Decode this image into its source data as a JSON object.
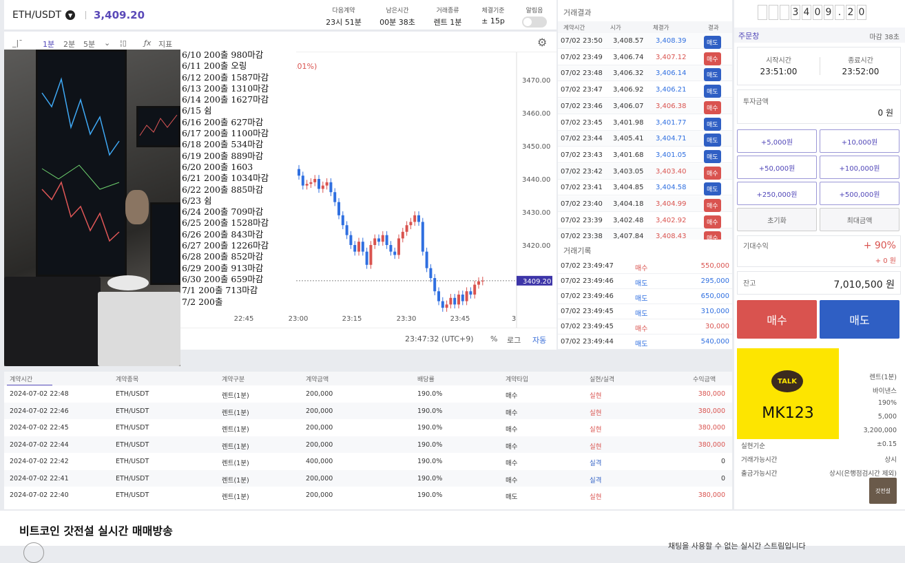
{
  "topbar": {
    "pair": "ETH/USDT",
    "price": "3,409.20",
    "items": [
      {
        "label": "다음계약",
        "value": "23시 51분"
      },
      {
        "label": "남은시간",
        "value": "00분 38초"
      },
      {
        "label": "거래종류",
        "value": "렌트 1분"
      },
      {
        "label": "체결기준",
        "value": "± 15p"
      },
      {
        "label": "알림음",
        "value": ""
      }
    ]
  },
  "toolbar": {
    "intervals": [
      "1분",
      "2분",
      "5분"
    ],
    "indicator": "지표"
  },
  "chart": {
    "partial_label": ".01%)",
    "price_label": "3409.20",
    "time_label": "23:47:32 (UTC+9)",
    "pct": "%",
    "log": "로그",
    "auto": "자동",
    "yticks": [
      "3470.00",
      "3460.00",
      "3450.00",
      "3440.00",
      "3430.00",
      "3420.00"
    ],
    "xticks": [
      "22:30",
      "22:45",
      "23:00",
      "23:15",
      "23:30",
      "23:45",
      "3"
    ]
  },
  "notes": [
    "6/10 200출  980마감",
    "6/11 200출 오링",
    "6/12 200출 1587마감",
    "6/13 200출 1310마감",
    "6/14 200출 1627마감",
    "6/15 쉼",
    "6/16 200출 627마감",
    "6/17 200출 1100마감",
    "6/18 200출 534마감",
    "6/19 200출 889마감",
    "6/20 200출 1603",
    "6/21 200출 1034마감",
    "6/22 200출 885마감",
    "6/23 쉼",
    "6/24 200출 709마감",
    "6/25 200출 1528마감",
    "6/26 200출 843마감",
    "6/27 200출 1226마감",
    "6/28 200출 852마감",
    "6/29 200출 913마감",
    "6/30 200출 659마감",
    "7/1  200출 713마감",
    "7/2  200출"
  ],
  "results": {
    "title": "거래결과",
    "headers": [
      "계약시간",
      "시가",
      "체결가",
      "결과"
    ],
    "rows": [
      [
        "07/02 23:50",
        "3,408.57",
        "3,408.39",
        "매도"
      ],
      [
        "07/02 23:49",
        "3,406.74",
        "3,407.12",
        "매수"
      ],
      [
        "07/02 23:48",
        "3,406.32",
        "3,406.14",
        "매도"
      ],
      [
        "07/02 23:47",
        "3,406.92",
        "3,406.21",
        "매도"
      ],
      [
        "07/02 23:46",
        "3,406.07",
        "3,406.38",
        "매수"
      ],
      [
        "07/02 23:45",
        "3,401.98",
        "3,401.77",
        "매도"
      ],
      [
        "07/02 23:44",
        "3,405.41",
        "3,404.71",
        "매도"
      ],
      [
        "07/02 23:43",
        "3,401.68",
        "3,401.05",
        "매도"
      ],
      [
        "07/02 23:42",
        "3,403.05",
        "3,403.40",
        "매수"
      ],
      [
        "07/02 23:41",
        "3,404.85",
        "3,404.58",
        "매도"
      ],
      [
        "07/02 23:40",
        "3,404.18",
        "3,404.99",
        "매수"
      ],
      [
        "07/02 23:39",
        "3,402.48",
        "3,402.92",
        "매수"
      ],
      [
        "07/02 23:38",
        "3,407.84",
        "3,408.43",
        "매수"
      ]
    ]
  },
  "history": {
    "title": "거래기록",
    "rows": [
      [
        "07/02 23:49:47",
        "매수",
        "550,000"
      ],
      [
        "07/02 23:49:46",
        "매도",
        "295,000"
      ],
      [
        "07/02 23:49:46",
        "매도",
        "650,000"
      ],
      [
        "07/02 23:49:45",
        "매도",
        "310,000"
      ],
      [
        "07/02 23:49:45",
        "매수",
        "30,000"
      ],
      [
        "07/02 23:49:44",
        "매도",
        "540,000"
      ]
    ]
  },
  "order": {
    "digits": [
      "",
      "",
      "",
      "3",
      "4",
      "0",
      "9",
      ".",
      "2",
      "0"
    ],
    "title": "주문창",
    "deadline": "마감 38초",
    "start_label": "시작시간",
    "start": "23:51:00",
    "end_label": "종료시간",
    "end": "23:52:00",
    "invest_label": "투자금액",
    "invest": "0 원",
    "buttons": [
      "+5,000원",
      "+10,000원",
      "+50,000원",
      "+100,000원",
      "+250,000원",
      "+500,000원",
      "초기화",
      "최대금액"
    ],
    "expect_label": "기대수익",
    "expect_pct": "+ 90%",
    "expect_amt": "+ 0 원",
    "balance_label": "잔고",
    "balance": "7,010,500 원",
    "buy": "매수",
    "sell": "매도",
    "talk": "TALK",
    "talk_id": "MK123",
    "info": [
      [
        "",
        "렌트(1분)"
      ],
      [
        "",
        "바이낸스"
      ],
      [
        "",
        "190%"
      ],
      [
        "",
        "5,000"
      ],
      [
        "",
        "3,200,000"
      ],
      [
        "실현기순",
        "±0.15"
      ],
      [
        "거래가능시간",
        "상시"
      ],
      [
        "출금가능시간",
        "상시(은행점검시간 제외)"
      ]
    ],
    "corner": "갓전설"
  },
  "contracts": {
    "headers": [
      "계약시간",
      "계약종목",
      "계약구분",
      "계약금액",
      "배당률",
      "계약타입",
      "실현/실격",
      "수익금액"
    ],
    "rows": [
      [
        "2024-07-02 22:48",
        "ETH/USDT",
        "렌트(1분)",
        "200,000",
        "190.0%",
        "매수",
        "실현",
        "380,000"
      ],
      [
        "2024-07-02 22:46",
        "ETH/USDT",
        "렌트(1분)",
        "200,000",
        "190.0%",
        "매수",
        "실현",
        "380,000"
      ],
      [
        "2024-07-02 22:45",
        "ETH/USDT",
        "렌트(1분)",
        "200,000",
        "190.0%",
        "매수",
        "실현",
        "380,000"
      ],
      [
        "2024-07-02 22:44",
        "ETH/USDT",
        "렌트(1분)",
        "200,000",
        "190.0%",
        "매수",
        "실현",
        "380,000"
      ],
      [
        "2024-07-02 22:42",
        "ETH/USDT",
        "렌트(1분)",
        "400,000",
        "190.0%",
        "매수",
        "실격",
        "0"
      ],
      [
        "2024-07-02 22:41",
        "ETH/USDT",
        "렌트(1분)",
        "200,000",
        "190.0%",
        "매수",
        "실격",
        "0"
      ],
      [
        "2024-07-02 22:40",
        "ETH/USDT",
        "렌트(1분)",
        "200,000",
        "190.0%",
        "매도",
        "실현",
        "380,000"
      ]
    ]
  },
  "stream": {
    "title": "비트코인 갓전설 실시간 매매방송",
    "chat_note": "채팅을 사용할 수 없는 실시간 스트림입니다"
  },
  "colors": {
    "accent": "#5046b8",
    "buy": "#d9534f",
    "sell": "#2f5fc4",
    "up": "#d9534f",
    "down": "#2f6fe0"
  }
}
